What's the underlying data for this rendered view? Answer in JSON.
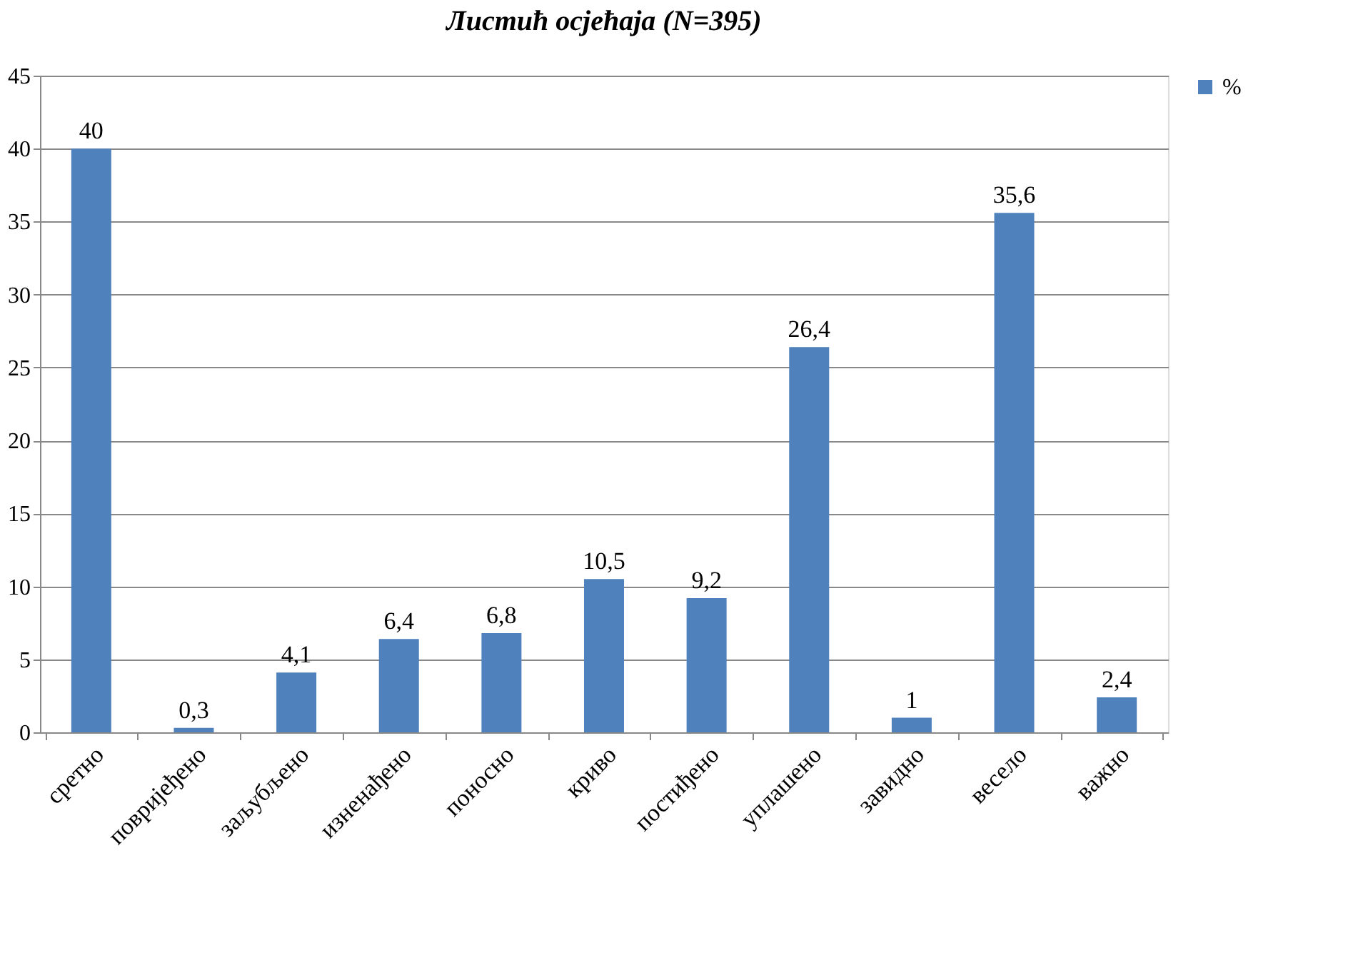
{
  "chart_data": {
    "type": "bar",
    "title": "Листић осјећаја (N=395)",
    "categories": [
      "сретно",
      "повријеђено",
      "заљубљено",
      "изненађено",
      "поносно",
      "криво",
      "постиђено",
      "уплашено",
      "завидно",
      "весело",
      "важно"
    ],
    "series": [
      {
        "name": "%",
        "color": "#4f81bd",
        "values": [
          40,
          0.3,
          4.1,
          6.4,
          6.8,
          10.5,
          9.2,
          26.4,
          1,
          35.6,
          2.4
        ]
      }
    ],
    "value_labels": [
      "40",
      "0,3",
      "4,1",
      "6,4",
      "6,8",
      "10,5",
      "9,2",
      "26,4",
      "1",
      "35,6",
      "2,4"
    ],
    "ylim": [
      0,
      45
    ],
    "yticks": [
      0,
      5,
      10,
      15,
      20,
      25,
      30,
      35,
      40,
      45
    ],
    "grid": "y",
    "legend": "right"
  }
}
